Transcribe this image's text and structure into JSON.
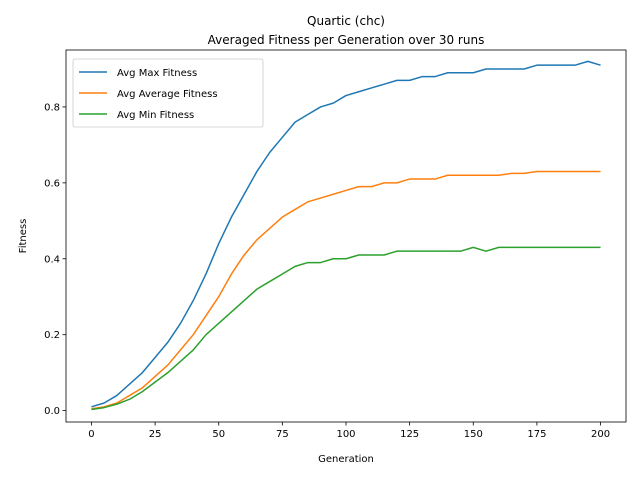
{
  "chart_data": {
    "type": "line",
    "title_line1": "Quartic (chc)",
    "title_line2": "Averaged Fitness per Generation over 30 runs",
    "xlabel": "Generation",
    "ylabel": "Fitness",
    "xlim": [
      -10,
      210
    ],
    "ylim": [
      -0.03,
      0.95
    ],
    "xticks": [
      0,
      25,
      50,
      75,
      100,
      125,
      150,
      175,
      200
    ],
    "yticks": [
      0.0,
      0.2,
      0.4,
      0.6,
      0.8
    ],
    "ytick_labels": [
      "0.0",
      "0.2",
      "0.4",
      "0.6",
      "0.8"
    ],
    "grid": false,
    "legend_position": "upper-left",
    "x": [
      0,
      5,
      10,
      15,
      20,
      25,
      30,
      35,
      40,
      45,
      50,
      55,
      60,
      65,
      70,
      75,
      80,
      85,
      90,
      95,
      100,
      105,
      110,
      115,
      120,
      125,
      130,
      135,
      140,
      145,
      150,
      155,
      160,
      165,
      170,
      175,
      180,
      185,
      190,
      195,
      200
    ],
    "series": [
      {
        "name": "Avg Max Fitness",
        "color": "#1f77b4",
        "values": [
          0.01,
          0.02,
          0.04,
          0.07,
          0.1,
          0.14,
          0.18,
          0.23,
          0.29,
          0.36,
          0.44,
          0.51,
          0.57,
          0.63,
          0.68,
          0.72,
          0.76,
          0.78,
          0.8,
          0.81,
          0.83,
          0.84,
          0.85,
          0.86,
          0.87,
          0.87,
          0.88,
          0.88,
          0.89,
          0.89,
          0.89,
          0.9,
          0.9,
          0.9,
          0.9,
          0.91,
          0.91,
          0.91,
          0.91,
          0.92,
          0.91
        ]
      },
      {
        "name": "Avg Average Fitness",
        "color": "#ff7f0e",
        "values": [
          0.005,
          0.01,
          0.02,
          0.04,
          0.06,
          0.09,
          0.12,
          0.16,
          0.2,
          0.25,
          0.3,
          0.36,
          0.41,
          0.45,
          0.48,
          0.51,
          0.53,
          0.55,
          0.56,
          0.57,
          0.58,
          0.59,
          0.59,
          0.6,
          0.6,
          0.61,
          0.61,
          0.61,
          0.62,
          0.62,
          0.62,
          0.62,
          0.62,
          0.625,
          0.625,
          0.63,
          0.63,
          0.63,
          0.63,
          0.63,
          0.63
        ]
      },
      {
        "name": "Avg Min Fitness",
        "color": "#2ca02c",
        "values": [
          0.003,
          0.008,
          0.017,
          0.03,
          0.05,
          0.075,
          0.1,
          0.13,
          0.16,
          0.2,
          0.23,
          0.26,
          0.29,
          0.32,
          0.34,
          0.36,
          0.38,
          0.39,
          0.39,
          0.4,
          0.4,
          0.41,
          0.41,
          0.41,
          0.42,
          0.42,
          0.42,
          0.42,
          0.42,
          0.42,
          0.43,
          0.42,
          0.43,
          0.43,
          0.43,
          0.43,
          0.43,
          0.43,
          0.43,
          0.43,
          0.43
        ]
      }
    ]
  }
}
